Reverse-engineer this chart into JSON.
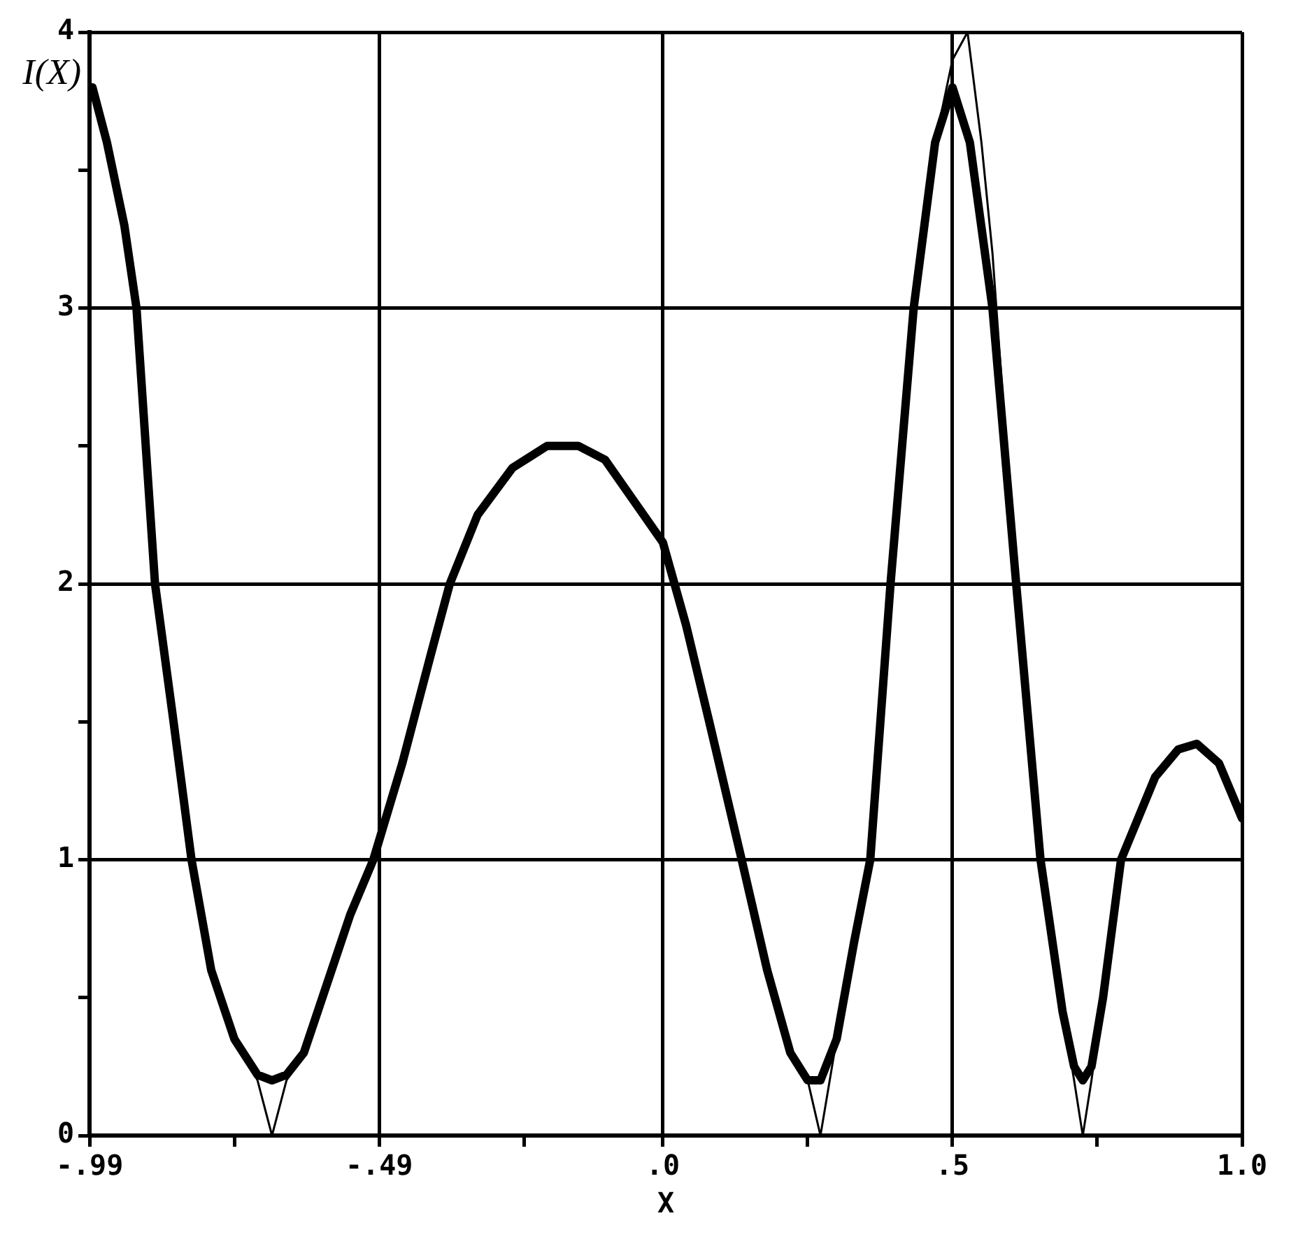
{
  "chart_data": {
    "type": "line",
    "xlabel": "X",
    "ylabel": "I(X)",
    "xlim": [
      -0.99,
      1.0
    ],
    "xticks": [
      {
        "value": -0.99,
        "label": "-.99"
      },
      {
        "value": -0.74,
        "label": null
      },
      {
        "value": -0.49,
        "label": "-.49"
      },
      {
        "value": -0.24,
        "label": null
      },
      {
        "value": 0,
        "label": ".0"
      },
      {
        "value": 0.25,
        "label": null
      },
      {
        "value": 0.5,
        "label": ".5"
      },
      {
        "value": 0.75,
        "label": null
      },
      {
        "value": 1.0,
        "label": "1.0"
      }
    ],
    "ylim": [
      0,
      4
    ],
    "yticks": [
      0,
      {
        "value": 0.5,
        "label": null
      },
      1,
      {
        "value": 1.5,
        "label": null
      },
      2,
      {
        "value": 2.5,
        "label": null
      },
      3,
      {
        "value": 3.5,
        "label": null
      },
      4
    ],
    "grid": true,
    "marker": "none",
    "line_style": "solid",
    "legend": false,
    "series": [
      {
        "color": "#000000",
        "x": [
          -0.985,
          -0.96,
          -0.93,
          -0.909,
          -0.877,
          -0.845,
          -0.814,
          -0.78,
          -0.74,
          -0.7,
          -0.675,
          -0.65,
          -0.62,
          -0.58,
          -0.54,
          -0.5,
          -0.45,
          -0.4,
          -0.368,
          -0.32,
          -0.26,
          -0.2,
          -0.146,
          -0.1,
          -0.05,
          0,
          0.04,
          0.08,
          0.136,
          0.18,
          0.22,
          0.25,
          0.272,
          0.3,
          0.33,
          0.358,
          0.393,
          0.433,
          0.47,
          0.5,
          0.53,
          0.569,
          0.61,
          0.652,
          0.69,
          0.71,
          0.725,
          0.74,
          0.76,
          0.791,
          0.85,
          0.89,
          0.922,
          0.96,
          1.0
        ],
        "values": [
          3.8,
          3.6,
          3.3,
          3.0,
          2.0,
          1.5,
          1.0,
          0.6,
          0.35,
          0.22,
          0.2,
          0.22,
          0.3,
          0.55,
          0.8,
          1.0,
          1.35,
          1.75,
          2.0,
          2.25,
          2.42,
          2.5,
          2.5,
          2.45,
          2.3,
          2.15,
          1.85,
          1.5,
          1.0,
          0.6,
          0.3,
          0.2,
          0.2,
          0.35,
          0.7,
          1.0,
          2.0,
          3.0,
          3.6,
          3.8,
          3.6,
          3.0,
          2.0,
          1.0,
          0.45,
          0.25,
          0.2,
          0.25,
          0.5,
          1.0,
          1.3,
          1.4,
          1.42,
          1.35,
          1.15
        ]
      },
      {
        "color": "#000000",
        "x": [
          -0.985,
          -0.96,
          -0.93,
          -0.909,
          -0.877,
          -0.845,
          -0.814,
          -0.78,
          -0.74,
          -0.7,
          -0.675,
          -0.65,
          -0.62,
          -0.58,
          -0.54,
          -0.5,
          -0.45,
          -0.4,
          -0.368,
          -0.32,
          -0.26,
          -0.2,
          -0.146,
          -0.1,
          -0.05,
          0,
          0.04,
          0.08,
          0.136,
          0.18,
          0.22,
          0.25,
          0.272,
          0.3,
          0.33,
          0.358,
          0.393,
          0.433,
          0.47,
          0.5,
          0.526,
          0.55,
          0.569,
          0.61,
          0.652,
          0.69,
          0.71,
          0.725,
          0.74,
          0.76,
          0.791,
          0.85,
          0.89,
          0.922,
          0.96,
          1.0
        ],
        "values": [
          3.8,
          3.6,
          3.3,
          3.0,
          2.0,
          1.5,
          1.0,
          0.6,
          0.35,
          0.2,
          0,
          0.2,
          0.3,
          0.55,
          0.8,
          1.0,
          1.35,
          1.75,
          2.0,
          2.25,
          2.42,
          2.5,
          2.5,
          2.45,
          2.3,
          2.15,
          1.85,
          1.5,
          1.0,
          0.6,
          0.3,
          0.2,
          0,
          0.35,
          0.7,
          1.0,
          2.0,
          3.0,
          3.6,
          3.9,
          4.0,
          3.6,
          3.2,
          2.0,
          1.0,
          0.45,
          0.2,
          0,
          0.2,
          0.5,
          1.0,
          1.3,
          1.4,
          1.42,
          1.35,
          1.15
        ]
      }
    ]
  }
}
